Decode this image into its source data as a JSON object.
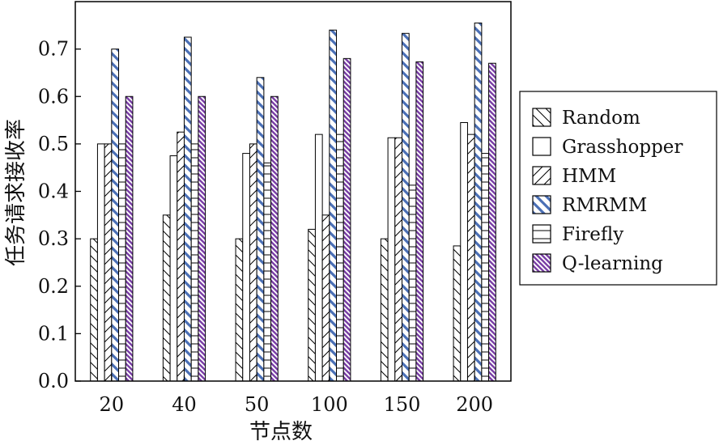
{
  "chart_data": {
    "type": "bar",
    "title": "",
    "xlabel": "节点数",
    "ylabel": "任务请求接收率",
    "categories": [
      "20",
      "40",
      "50",
      "100",
      "150",
      "200"
    ],
    "ylim": [
      0.0,
      0.8
    ],
    "yticks": [
      "0.0",
      "0.1",
      "0.2",
      "0.3",
      "0.4",
      "0.5",
      "0.6",
      "0.7"
    ],
    "grid": false,
    "legend_position": "right",
    "series": [
      {
        "name": "Random",
        "pattern": "backslash-hatch",
        "color": "#000000",
        "values": [
          0.3,
          0.35,
          0.3,
          0.32,
          0.3,
          0.285
        ]
      },
      {
        "name": "Grasshopper",
        "pattern": "plain",
        "color": "#000000",
        "values": [
          0.5,
          0.475,
          0.48,
          0.52,
          0.513,
          0.545
        ]
      },
      {
        "name": "HMM",
        "pattern": "slash-hatch",
        "color": "#000000",
        "values": [
          0.5,
          0.525,
          0.5,
          0.35,
          0.513,
          0.52
        ]
      },
      {
        "name": "RMRMM",
        "pattern": "blue-diagonal",
        "color": "#4a6fb5",
        "values": [
          0.7,
          0.725,
          0.64,
          0.74,
          0.733,
          0.755
        ]
      },
      {
        "name": "Firefly",
        "pattern": "horizontal-lines",
        "color": "#000000",
        "values": [
          0.5,
          0.5,
          0.46,
          0.52,
          0.413,
          0.48
        ]
      },
      {
        "name": "Q-learning",
        "pattern": "purple-dense",
        "color": "#7a3fa6",
        "values": [
          0.6,
          0.6,
          0.6,
          0.68,
          0.673,
          0.67
        ]
      }
    ]
  }
}
